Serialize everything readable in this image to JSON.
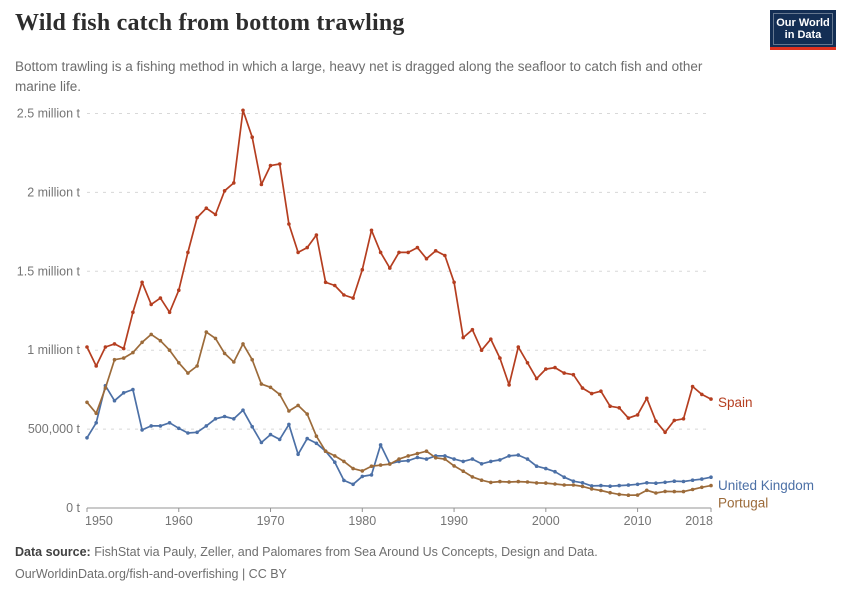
{
  "header": {
    "title": "Wild fish catch from bottom trawling",
    "subtitle": "Bottom trawling is a fishing method in which a large, heavy net is dragged along the seafloor to catch fish and other marine life.",
    "logo": {
      "line1": "Our World",
      "line2": "in Data"
    }
  },
  "footer": {
    "source_label": "Data source:",
    "source_text": "FishStat via Pauly, Zeller, and Palomares from Sea Around Us Concepts, Design and Data.",
    "citation": "OurWorldinData.org/fish-and-overfishing | CC BY"
  },
  "colors": {
    "axis": "#949494",
    "grid": "#d8d8d8",
    "tick_text": "#757575",
    "background": "#ffffff",
    "logo_navy": "#132e54",
    "logo_red": "#e0321f"
  },
  "chart_data": {
    "type": "line",
    "title": "Wild fish catch from bottom trawling",
    "xlabel": "",
    "ylabel": "",
    "unit": "tonnes",
    "grid": true,
    "legend_position": "line-end-labels",
    "xlim": [
      1950,
      2018
    ],
    "ylim": [
      0,
      2500000
    ],
    "x_ticks": [
      1950,
      1960,
      1970,
      1980,
      1990,
      2000,
      2010,
      2018
    ],
    "y_ticks": [
      {
        "value": 0,
        "label": "0 t"
      },
      {
        "value": 500000,
        "label": "500,000 t"
      },
      {
        "value": 1000000,
        "label": "1 million t"
      },
      {
        "value": 1500000,
        "label": "1.5 million t"
      },
      {
        "value": 2000000,
        "label": "2 million t"
      },
      {
        "value": 2500000,
        "label": "2.5 million t"
      }
    ],
    "x": [
      1950,
      1951,
      1952,
      1953,
      1954,
      1955,
      1956,
      1957,
      1958,
      1959,
      1960,
      1961,
      1962,
      1963,
      1964,
      1965,
      1966,
      1967,
      1968,
      1969,
      1970,
      1971,
      1972,
      1973,
      1974,
      1975,
      1976,
      1977,
      1978,
      1979,
      1980,
      1981,
      1982,
      1983,
      1984,
      1985,
      1986,
      1987,
      1988,
      1989,
      1990,
      1991,
      1992,
      1993,
      1994,
      1995,
      1996,
      1997,
      1998,
      1999,
      2000,
      2001,
      2002,
      2003,
      2004,
      2005,
      2006,
      2007,
      2008,
      2009,
      2010,
      2011,
      2012,
      2013,
      2014,
      2015,
      2016,
      2017,
      2018
    ],
    "series": [
      {
        "name": "Spain",
        "color": "#b53e20",
        "label_dy": 8,
        "values": [
          1020000,
          900000,
          1020000,
          1040000,
          1010000,
          1240000,
          1430000,
          1290000,
          1330000,
          1240000,
          1380000,
          1620000,
          1840000,
          1900000,
          1860000,
          2010000,
          2060000,
          2520000,
          2350000,
          2050000,
          2170000,
          2180000,
          1800000,
          1620000,
          1650000,
          1730000,
          1430000,
          1410000,
          1350000,
          1330000,
          1510000,
          1760000,
          1620000,
          1520000,
          1620000,
          1620000,
          1650000,
          1580000,
          1630000,
          1600000,
          1430000,
          1080000,
          1130000,
          1000000,
          1070000,
          950000,
          780000,
          1020000,
          920000,
          820000,
          880000,
          890000,
          855000,
          845000,
          760000,
          725000,
          740000,
          645000,
          635000,
          570000,
          590000,
          695000,
          550000,
          480000,
          555000,
          565000,
          770000,
          720000,
          690000
        ]
      },
      {
        "name": "United Kingdom",
        "color": "#4c70a6",
        "label_dy": 13,
        "values": [
          445000,
          540000,
          775000,
          680000,
          730000,
          750000,
          495000,
          520000,
          520000,
          540000,
          505000,
          475000,
          480000,
          520000,
          565000,
          580000,
          565000,
          620000,
          515000,
          415000,
          465000,
          435000,
          530000,
          340000,
          440000,
          410000,
          360000,
          290000,
          175000,
          150000,
          200000,
          210000,
          400000,
          280000,
          295000,
          300000,
          320000,
          310000,
          330000,
          330000,
          310000,
          295000,
          310000,
          280000,
          295000,
          305000,
          330000,
          335000,
          310000,
          265000,
          250000,
          230000,
          195000,
          170000,
          160000,
          140000,
          142000,
          138000,
          142000,
          145000,
          150000,
          160000,
          157000,
          163000,
          170000,
          168000,
          176000,
          183000,
          195000
        ]
      },
      {
        "name": "Portugal",
        "color": "#9c6b3a",
        "label_dy": 22,
        "values": [
          670000,
          600000,
          760000,
          940000,
          950000,
          985000,
          1050000,
          1100000,
          1060000,
          1000000,
          920000,
          855000,
          900000,
          1115000,
          1075000,
          980000,
          925000,
          1040000,
          940000,
          785000,
          765000,
          720000,
          615000,
          650000,
          595000,
          455000,
          360000,
          330000,
          295000,
          250000,
          235000,
          265000,
          272000,
          278000,
          310000,
          330000,
          345000,
          360000,
          318000,
          310000,
          267000,
          233000,
          197000,
          176000,
          162000,
          167000,
          165000,
          167000,
          165000,
          159000,
          158000,
          152000,
          146000,
          146000,
          137000,
          121000,
          111000,
          97000,
          86000,
          81000,
          82000,
          112000,
          95000,
          105000,
          104000,
          104000,
          117000,
          131000,
          142000
        ]
      }
    ]
  }
}
